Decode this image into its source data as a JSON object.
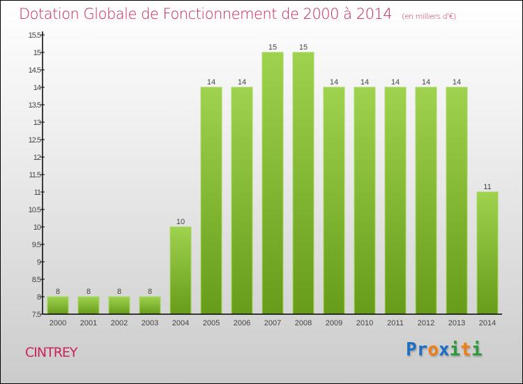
{
  "chart_data": {
    "type": "bar",
    "title": "Dotation Globale de Fonctionnement de 2000 à 2014",
    "subtitle": "(en milliers d'€)",
    "categories": [
      "2000",
      "2001",
      "2002",
      "2003",
      "2004",
      "2005",
      "2006",
      "2007",
      "2008",
      "2009",
      "2010",
      "2011",
      "2012",
      "2013",
      "2014"
    ],
    "values": [
      8,
      8,
      8,
      8,
      10,
      14,
      14,
      15,
      15,
      14,
      14,
      14,
      14,
      14,
      11
    ],
    "ylim": [
      7.5,
      15.5
    ],
    "yticks": [
      "7.5",
      "8",
      "8.5",
      "9",
      "9.5",
      "10",
      "10.5",
      "11",
      "11.5",
      "12",
      "12.5",
      "13",
      "13.5",
      "14",
      "14.5",
      "15",
      "15.5"
    ],
    "xlabel": "",
    "ylabel": "",
    "grid": false,
    "bar_color_top": "#9fd24e",
    "bar_color_bottom": "#669c1a"
  },
  "footer": {
    "commune": "CINTREY",
    "logo": [
      "P",
      "r",
      "o",
      "x",
      "i",
      "t",
      "i"
    ]
  },
  "colors": {
    "title": "#c8245a",
    "logo": [
      "#1a6fc4",
      "#1a6fc4",
      "#f07d12",
      "#1a6fc4",
      "#2a9a3a",
      "#f07d12",
      "#2a9a3a"
    ]
  }
}
